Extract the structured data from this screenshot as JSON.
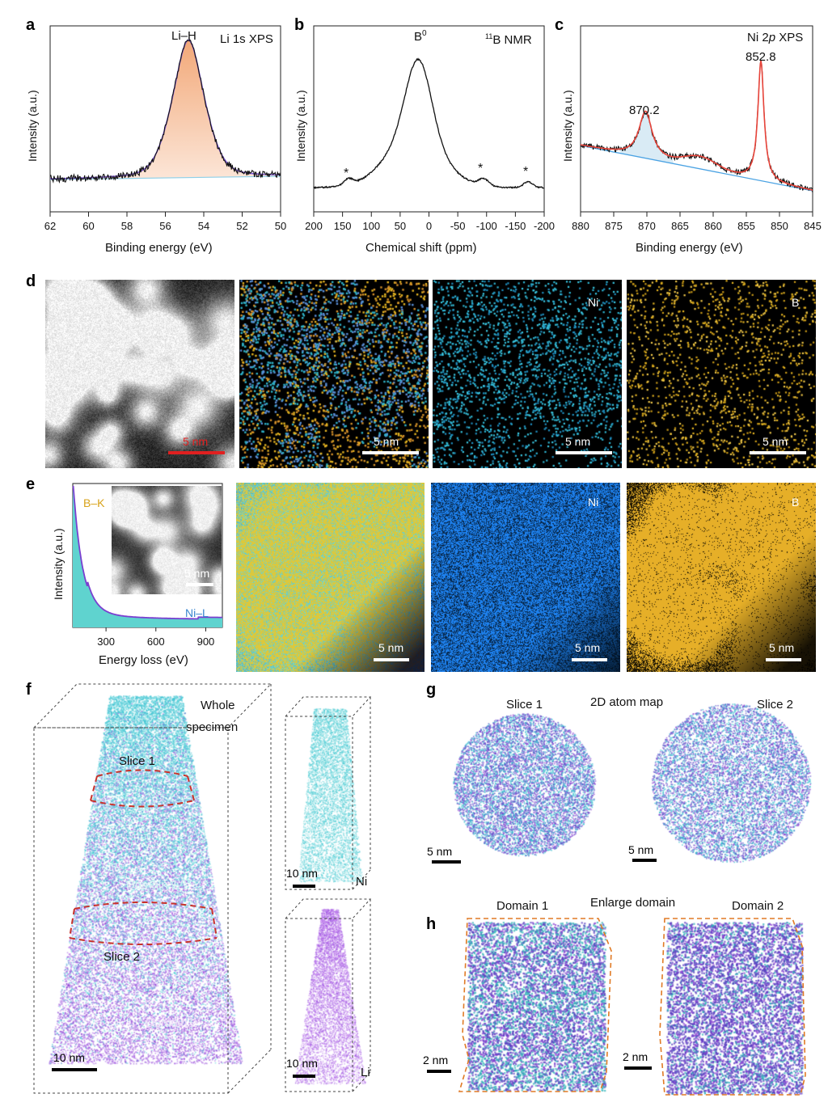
{
  "panels": {
    "a": "a",
    "b": "b",
    "c": "c",
    "d": "d",
    "e": "e",
    "f": "f",
    "g": "g",
    "h": "h"
  },
  "colors": {
    "ni": "#31c6d4",
    "b": "#e3b321",
    "li": "#8a3fd1",
    "fit": "#e8443a",
    "bg_line": "#4ba3e3"
  },
  "chart_data": [
    {
      "type": "line",
      "title": "Li 1s XPS",
      "annotation": "Li–H",
      "xlabel": "Binding energy (eV)",
      "ylabel": "Intensity (a.u.)",
      "xlim": [
        62,
        50
      ],
      "xticks": [
        "62",
        "60",
        "58",
        "56",
        "54",
        "52",
        "50"
      ],
      "peaks": [
        {
          "x": 54.8,
          "label": "Li–H"
        }
      ]
    },
    {
      "type": "line",
      "title": "11B NMR",
      "annotation": "B0",
      "xlabel": "Chemical shift (ppm)",
      "ylabel": "Intensity (a.u.)",
      "xlim": [
        200,
        -200
      ],
      "xticks": [
        "200",
        "150",
        "100",
        "50",
        "0",
        "-50",
        "-100",
        "-150",
        "-200"
      ],
      "peaks": [
        {
          "x": 18,
          "label": "B0"
        }
      ],
      "markers": [
        {
          "x": 140,
          "label": "*"
        },
        {
          "x": -92,
          "label": "*"
        },
        {
          "x": -170,
          "label": "*"
        }
      ]
    },
    {
      "type": "line",
      "title": "Ni 2p XPS",
      "xlabel": "Binding energy (eV)",
      "ylabel": "Intensity (a.u.)",
      "xlim": [
        880,
        845
      ],
      "xticks": [
        "880",
        "875",
        "870",
        "865",
        "860",
        "855",
        "850",
        "845"
      ],
      "peaks": [
        {
          "x": 870.2,
          "label": "870.2"
        },
        {
          "x": 852.8,
          "label": "852.8"
        }
      ]
    },
    {
      "type": "line",
      "xlabel": "Energy loss (eV)",
      "ylabel": "Intensity (a.u.)",
      "xlim": [
        100,
        1000
      ],
      "xticks": [
        "300",
        "600",
        "900"
      ],
      "edges": [
        {
          "x": 188,
          "label": "B–K"
        },
        {
          "x": 855,
          "label": "Ni–L"
        }
      ]
    }
  ],
  "text": {
    "a_title": "Li 1s XPS",
    "a_peak": "Li–H",
    "b_title_sup": "11",
    "b_title": "B NMR",
    "b_peak": "B",
    "b_peak_sup": "0",
    "star": "*",
    "c_title": "Ni 2",
    "c_title_p": "p",
    "c_title_rest": " XPS",
    "c_peak1": "870.2",
    "c_peak2": "852.8",
    "ylabel": "Intensity (a.u.)",
    "xlabel_be": "Binding energy (eV)",
    "xlabel_cs": "Chemical shift (ppm)",
    "xlabel_el": "Energy loss (eV)",
    "ni": "Ni",
    "b": "B",
    "li": "Li",
    "five_nm": "5 nm",
    "ten_nm": "10 nm",
    "two_nm": "2 nm",
    "bk": "B–K",
    "nil": "Ni–L",
    "whole": "Whole",
    "specimen": "specimen",
    "slice1": "Slice 1",
    "slice2": "Slice 2",
    "domain1": "Domain 1",
    "domain2": "Domain 2",
    "atom_map": "2D  atom  map",
    "enlarge": "Enlarge domain"
  }
}
